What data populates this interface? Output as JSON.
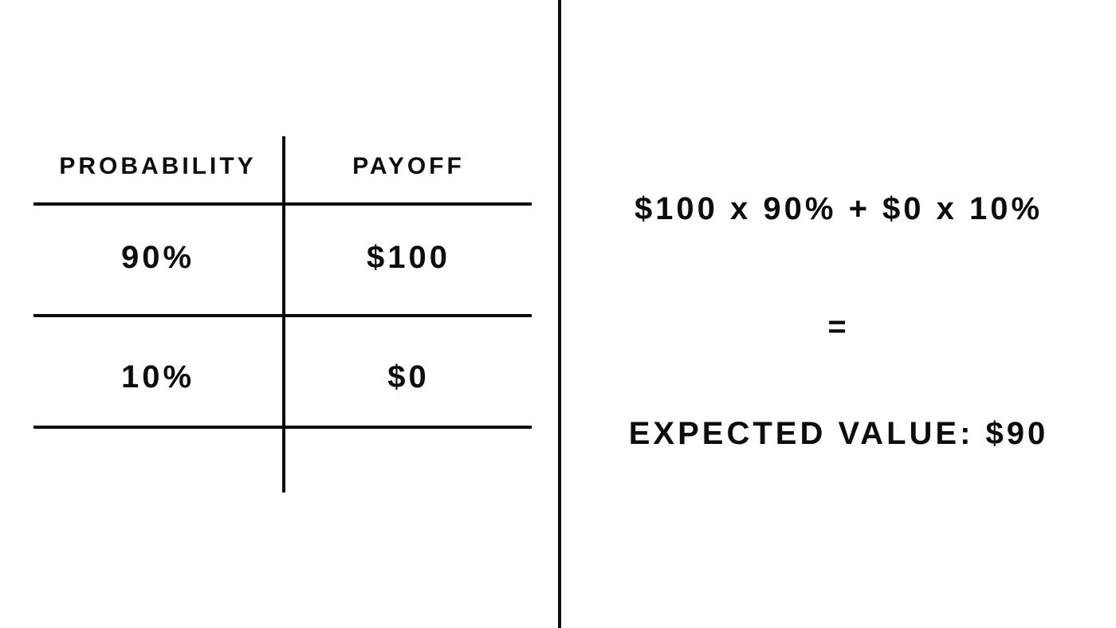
{
  "table": {
    "headers": {
      "probability": "PROBABILITY",
      "payoff": "PAYOFF"
    },
    "rows": [
      {
        "probability": "90%",
        "payoff": "$100"
      },
      {
        "probability": "10%",
        "payoff": "$0"
      }
    ]
  },
  "calculation": {
    "formula": "$100 x 90% + $0 x 10%",
    "equals": "=",
    "result": "EXPECTED VALUE: $90"
  }
}
